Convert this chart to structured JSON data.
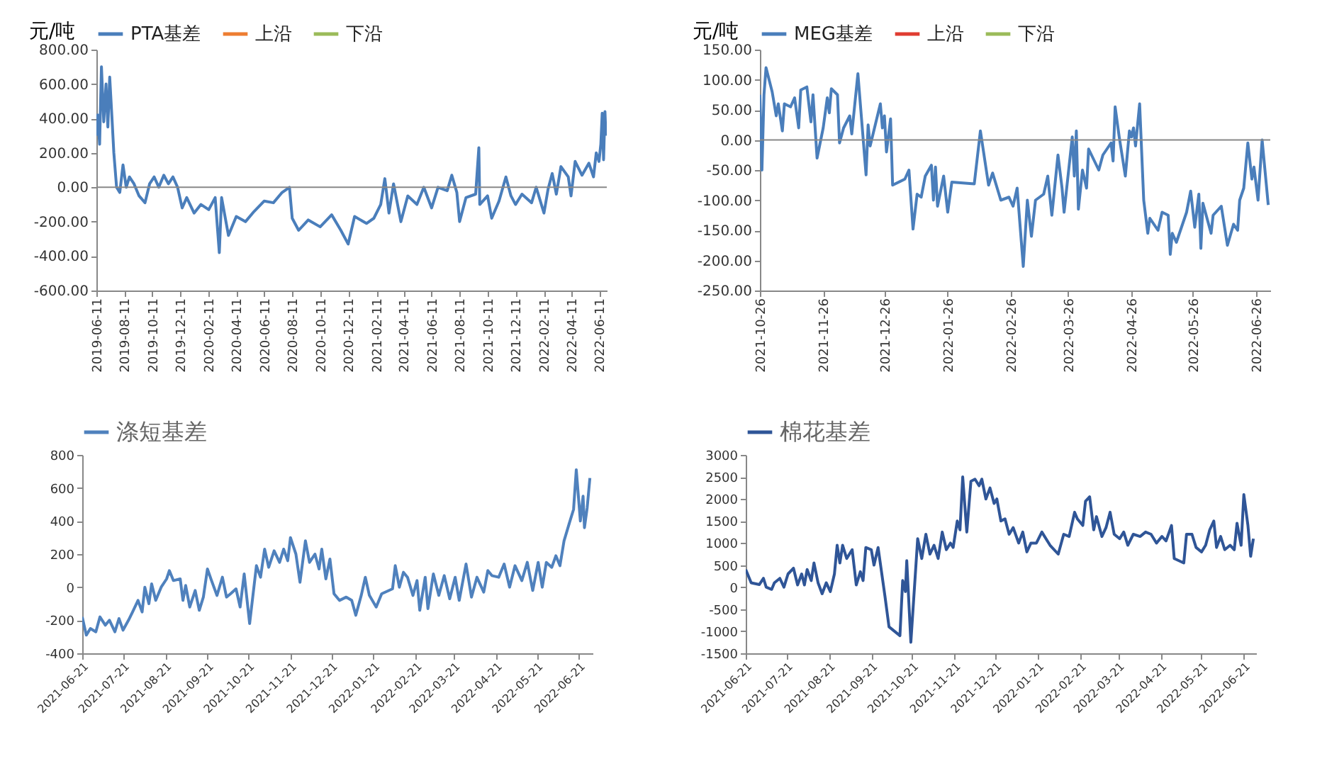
{
  "chart_data": [
    {
      "type": "line",
      "ylabel": "元/吨",
      "legend": "top",
      "xlim": [
        "2019-06-11",
        "2022-06-28"
      ],
      "ylim": [
        -600,
        800
      ],
      "yticks": [
        {
          "value": -600,
          "label": "-600.00"
        },
        {
          "value": -400,
          "label": "-400.00"
        },
        {
          "value": -200,
          "label": "-200.00"
        },
        {
          "value": 0,
          "label": "0.00"
        },
        {
          "value": 200,
          "label": "200.00"
        },
        {
          "value": 400,
          "label": "400.00"
        },
        {
          "value": 600,
          "label": "600.00"
        },
        {
          "value": 800,
          "label": "800.00"
        }
      ],
      "xticks": [
        "2019-06-11",
        "2019-08-11",
        "2019-10-11",
        "2019-12-11",
        "2020-02-11",
        "2020-04-11",
        "2020-06-11",
        "2020-08-11",
        "2020-10-11",
        "2020-12-11",
        "2021-02-11",
        "2021-04-11",
        "2021-06-11",
        "2021-08-11",
        "2021-10-11",
        "2021-12-11",
        "2022-02-11",
        "2022-04-11",
        "2022-06-11"
      ],
      "x": [
        "2019-06-11",
        "2019-06-14",
        "2019-06-18",
        "2019-06-22",
        "2019-06-27",
        "2019-07-02",
        "2019-07-06",
        "2019-07-10",
        "2019-07-15",
        "2019-07-19",
        "2019-07-25",
        "2019-08-01",
        "2019-08-08",
        "2019-08-15",
        "2019-08-22",
        "2019-09-01",
        "2019-09-12",
        "2019-09-25",
        "2019-10-05",
        "2019-10-15",
        "2019-10-25",
        "2019-11-05",
        "2019-11-15",
        "2019-11-25",
        "2019-12-05",
        "2019-12-15",
        "2019-12-25",
        "2020-01-10",
        "2020-01-25",
        "2020-02-11",
        "2020-02-25",
        "2020-03-05",
        "2020-03-10",
        "2020-03-25",
        "2020-04-11",
        "2020-05-01",
        "2020-05-20",
        "2020-06-11",
        "2020-07-01",
        "2020-07-20",
        "2020-08-05",
        "2020-08-11",
        "2020-08-25",
        "2020-09-15",
        "2020-10-11",
        "2020-11-05",
        "2020-11-25",
        "2020-12-11",
        "2020-12-25",
        "2021-01-20",
        "2021-02-05",
        "2021-02-20",
        "2021-03-01",
        "2021-03-10",
        "2021-03-20",
        "2021-04-05",
        "2021-04-20",
        "2021-05-10",
        "2021-05-25",
        "2021-06-11",
        "2021-06-25",
        "2021-07-15",
        "2021-07-25",
        "2021-08-05",
        "2021-08-11",
        "2021-08-25",
        "2021-09-15",
        "2021-09-22",
        "2021-09-24",
        "2021-10-11",
        "2021-10-20",
        "2021-11-05",
        "2021-11-20",
        "2021-12-01",
        "2021-12-11",
        "2021-12-25",
        "2022-01-15",
        "2022-01-25",
        "2022-02-11",
        "2022-02-20",
        "2022-03-01",
        "2022-03-10",
        "2022-03-20",
        "2022-04-05",
        "2022-04-11",
        "2022-04-20",
        "2022-05-05",
        "2022-05-20",
        "2022-05-30",
        "2022-06-05",
        "2022-06-11",
        "2022-06-15",
        "2022-06-18",
        "2022-06-21",
        "2022-06-24",
        "2022-06-26"
      ],
      "series": [
        {
          "name": "PTA基差",
          "color": "#4a7ebb",
          "values": [
            300,
            420,
            250,
            700,
            380,
            600,
            350,
            640,
            400,
            200,
            0,
            -30,
            130,
            0,
            60,
            20,
            -50,
            -90,
            20,
            60,
            0,
            70,
            20,
            60,
            0,
            -120,
            -60,
            -150,
            -100,
            -130,
            -60,
            -380,
            -60,
            -280,
            -170,
            -200,
            -140,
            -80,
            -90,
            -30,
            0,
            -180,
            -250,
            -190,
            -230,
            -160,
            -250,
            -330,
            -170,
            -210,
            -180,
            -100,
            50,
            -150,
            20,
            -200,
            -50,
            -100,
            0,
            -120,
            0,
            -20,
            70,
            -30,
            -200,
            -60,
            -40,
            230,
            -100,
            -50,
            -180,
            -80,
            60,
            -50,
            -100,
            -40,
            -90,
            0,
            -150,
            -10,
            80,
            -40,
            120,
            60,
            -50,
            150,
            70,
            140,
            60,
            200,
            150,
            250,
            430,
            160,
            440,
            300
          ]
        },
        {
          "name": "上沿",
          "color": "#ed7d31",
          "values": [
            null,
            null,
            null,
            null,
            null,
            null,
            null,
            null,
            null,
            null,
            null,
            null,
            null,
            null,
            null,
            null,
            null,
            null,
            null,
            null,
            null,
            null,
            null,
            null,
            null,
            null,
            null,
            null,
            null,
            null,
            null,
            null,
            null,
            null,
            null,
            null,
            null,
            null,
            null,
            null,
            null,
            null,
            null,
            null,
            null,
            null,
            null,
            null,
            null,
            null,
            null,
            null,
            null,
            null,
            null,
            null,
            null,
            null,
            null,
            null,
            null,
            null,
            null,
            null,
            null,
            null,
            null,
            null,
            null,
            null,
            null,
            null,
            null,
            null,
            null,
            null,
            null,
            null,
            null,
            null,
            null,
            null,
            null,
            null,
            null,
            null,
            null,
            null,
            null,
            null,
            null,
            null,
            null,
            null,
            null,
            null
          ]
        },
        {
          "name": "下沿",
          "color": "#9bbb59",
          "values": [
            null,
            null,
            null,
            null,
            null,
            null,
            null,
            null,
            null,
            null,
            null,
            null,
            null,
            null,
            null,
            null,
            null,
            null,
            null,
            null,
            null,
            null,
            null,
            null,
            null,
            null,
            null,
            null,
            null,
            null,
            null,
            null,
            null,
            null,
            null,
            null,
            null,
            null,
            null,
            null,
            null,
            null,
            null,
            null,
            null,
            null,
            null,
            null,
            null,
            null,
            null,
            null,
            null,
            null,
            null,
            null,
            null,
            null,
            null,
            null,
            null,
            null,
            null,
            null,
            null,
            null,
            null,
            null,
            null,
            null,
            null,
            null,
            null,
            null,
            null,
            null,
            null,
            null,
            null,
            null,
            null,
            null,
            null,
            null,
            null,
            null,
            null,
            null,
            null,
            null,
            null,
            null,
            null,
            null,
            null,
            null
          ]
        }
      ],
      "ref_lines": [
        {
          "axis": "y",
          "value": 0,
          "color": "#888888"
        }
      ]
    },
    {
      "type": "line",
      "ylabel": "元/吨",
      "legend": "top",
      "xlim": [
        "2021-10-26",
        "2022-07-03"
      ],
      "ylim": [
        -250,
        150
      ],
      "yticks": [
        {
          "value": -250,
          "label": "-250.00"
        },
        {
          "value": -200,
          "label": "-200.00"
        },
        {
          "value": -150,
          "label": "-150.00"
        },
        {
          "value": -100,
          "label": "-100.00"
        },
        {
          "value": -50,
          "label": "-50.00"
        },
        {
          "value": 0,
          "label": "0.00"
        },
        {
          "value": 50,
          "label": "50.00"
        },
        {
          "value": 100,
          "label": "100.00"
        },
        {
          "value": 150,
          "label": "150.00"
        }
      ],
      "xticks": [
        "2021-10-26",
        "2021-11-26",
        "2021-12-26",
        "2022-01-26",
        "2022-02-26",
        "2022-03-26",
        "2022-04-26",
        "2022-05-26",
        "2022-06-26"
      ],
      "x": [
        "2021-10-26",
        "2021-10-27",
        "2021-10-28",
        "2021-10-29",
        "2021-11-01",
        "2021-11-03",
        "2021-11-04",
        "2021-11-06",
        "2021-11-07",
        "2021-11-10",
        "2021-11-12",
        "2021-11-14",
        "2021-11-15",
        "2021-11-18",
        "2021-11-20",
        "2021-11-21",
        "2021-11-23",
        "2021-11-26",
        "2021-11-28",
        "2021-11-29",
        "2021-11-30",
        "2021-12-03",
        "2021-12-04",
        "2021-12-06",
        "2021-12-09",
        "2021-12-10",
        "2021-12-13",
        "2021-12-17",
        "2021-12-18",
        "2021-12-19",
        "2021-12-24",
        "2021-12-25",
        "2021-12-26",
        "2021-12-27",
        "2021-12-29",
        "2021-12-30",
        "2022-01-05",
        "2022-01-07",
        "2022-01-09",
        "2022-01-11",
        "2022-01-13",
        "2022-01-15",
        "2022-01-18",
        "2022-01-19",
        "2022-01-20",
        "2022-01-21",
        "2022-01-24",
        "2022-01-26",
        "2022-01-28",
        "2022-02-08",
        "2022-02-11",
        "2022-02-15",
        "2022-02-17",
        "2022-02-21",
        "2022-02-25",
        "2022-02-27",
        "2022-03-01",
        "2022-03-04",
        "2022-03-06",
        "2022-03-08",
        "2022-03-10",
        "2022-03-14",
        "2022-03-16",
        "2022-03-18",
        "2022-03-21",
        "2022-03-23",
        "2022-03-24",
        "2022-03-28",
        "2022-03-29",
        "2022-03-30",
        "2022-03-31",
        "2022-04-02",
        "2022-04-04",
        "2022-04-05",
        "2022-04-10",
        "2022-04-12",
        "2022-04-16",
        "2022-04-17",
        "2022-04-18",
        "2022-04-20",
        "2022-04-23",
        "2022-04-25",
        "2022-04-26",
        "2022-04-27",
        "2022-04-28",
        "2022-04-30",
        "2022-05-02",
        "2022-05-04",
        "2022-05-05",
        "2022-05-09",
        "2022-05-11",
        "2022-05-14",
        "2022-05-15",
        "2022-05-16",
        "2022-05-18",
        "2022-05-23",
        "2022-05-25",
        "2022-05-27",
        "2022-05-29",
        "2022-05-30",
        "2022-05-31",
        "2022-06-04",
        "2022-06-05",
        "2022-06-09",
        "2022-06-12",
        "2022-06-15",
        "2022-06-17",
        "2022-06-18",
        "2022-06-20",
        "2022-06-22",
        "2022-06-24",
        "2022-06-25",
        "2022-06-27",
        "2022-06-29",
        "2022-07-02"
      ],
      "series": [
        {
          "name": "MEG基差",
          "color": "#4a7ebb",
          "values": [
            75,
            -50,
            75,
            120,
            80,
            40,
            60,
            15,
            60,
            55,
            70,
            20,
            83,
            88,
            30,
            75,
            -30,
            20,
            70,
            45,
            85,
            75,
            -5,
            20,
            40,
            10,
            110,
            -58,
            25,
            -10,
            60,
            20,
            40,
            -20,
            35,
            -75,
            -65,
            -50,
            -148,
            -90,
            -95,
            -60,
            -42,
            -100,
            -45,
            -110,
            -60,
            -120,
            -70,
            -73,
            15,
            -75,
            -55,
            -100,
            -95,
            -110,
            -80,
            -210,
            -100,
            -160,
            -100,
            -90,
            -60,
            -125,
            -25,
            -80,
            -120,
            5,
            -60,
            15,
            -115,
            -50,
            -80,
            -15,
            -50,
            -25,
            -5,
            -35,
            55,
            5,
            -60,
            15,
            5,
            20,
            -10,
            60,
            -100,
            -155,
            -130,
            -150,
            -120,
            -125,
            -190,
            -155,
            -170,
            -120,
            -85,
            -145,
            -90,
            -180,
            -105,
            -155,
            -125,
            -110,
            -175,
            -140,
            -150,
            -100,
            -80,
            -5,
            -65,
            -45,
            -100,
            0,
            -108
          ]
        },
        {
          "name": "上沿",
          "color": "#e03c31",
          "values": [
            null,
            null,
            null,
            null,
            null,
            null,
            null,
            null,
            null,
            null,
            null,
            null,
            null,
            null,
            null,
            null,
            null,
            null,
            null,
            null,
            null,
            null,
            null,
            null,
            null,
            null,
            null,
            null,
            null,
            null,
            null,
            null,
            null,
            null,
            null,
            null,
            null,
            null,
            null,
            null,
            null,
            null,
            null,
            null,
            null,
            null,
            null,
            null,
            null,
            null,
            null,
            null,
            null,
            null,
            null,
            null,
            null,
            null,
            null,
            null,
            null,
            null,
            null,
            null,
            null,
            null,
            null,
            null,
            null,
            null,
            null,
            null,
            null,
            null,
            null,
            null,
            null,
            null,
            null,
            null,
            null,
            null,
            null,
            null,
            null,
            null,
            null,
            null,
            null,
            null,
            null,
            null,
            null,
            null,
            null,
            null,
            null,
            null,
            null,
            null,
            null,
            null,
            null,
            null,
            null,
            null,
            null,
            null,
            null,
            null,
            null,
            null,
            null,
            null,
            null
          ]
        },
        {
          "name": "下沿",
          "color": "#9bbb59",
          "values": [
            null,
            null,
            null,
            null,
            null,
            null,
            null,
            null,
            null,
            null,
            null,
            null,
            null,
            null,
            null,
            null,
            null,
            null,
            null,
            null,
            null,
            null,
            null,
            null,
            null,
            null,
            null,
            null,
            null,
            null,
            null,
            null,
            null,
            null,
            null,
            null,
            null,
            null,
            null,
            null,
            null,
            null,
            null,
            null,
            null,
            null,
            null,
            null,
            null,
            null,
            null,
            null,
            null,
            null,
            null,
            null,
            null,
            null,
            null,
            null,
            null,
            null,
            null,
            null,
            null,
            null,
            null,
            null,
            null,
            null,
            null,
            null,
            null,
            null,
            null,
            null,
            null,
            null,
            null,
            null,
            null,
            null,
            null,
            null,
            null,
            null,
            null,
            null,
            null,
            null,
            null,
            null,
            null,
            null,
            null,
            null,
            null,
            null,
            null,
            null,
            null,
            null,
            null,
            null,
            null,
            null,
            null,
            null,
            null,
            null,
            null,
            null,
            null,
            null,
            null
          ]
        }
      ],
      "ref_lines": [
        {
          "axis": "y",
          "value": 0,
          "color": "#888888"
        }
      ]
    },
    {
      "type": "line",
      "legend": "top",
      "xlim": [
        "2021-06-21",
        "2022-07-01"
      ],
      "ylim": [
        -400,
        800
      ],
      "yticks": [
        -400,
        -200,
        0,
        200,
        400,
        600,
        800
      ],
      "xticks": [
        "2021-06-21",
        "2021-07-21",
        "2021-08-21",
        "2021-09-21",
        "2021-10-21",
        "2021-11-21",
        "2021-12-21",
        "2022-01-21",
        "2022-02-21",
        "2022-03-21",
        "2022-04-21",
        "2022-05-21",
        "2022-06-21"
      ],
      "x": [
        "2021-06-21",
        "2021-06-24",
        "2021-06-27",
        "2021-07-01",
        "2021-07-04",
        "2021-07-08",
        "2021-07-11",
        "2021-07-15",
        "2021-07-18",
        "2021-07-21",
        "2021-07-25",
        "2021-07-28",
        "2021-08-01",
        "2021-08-04",
        "2021-08-06",
        "2021-08-09",
        "2021-08-11",
        "2021-08-14",
        "2021-08-18",
        "2021-08-22",
        "2021-08-24",
        "2021-08-27",
        "2021-09-01",
        "2021-09-03",
        "2021-09-05",
        "2021-09-08",
        "2021-09-12",
        "2021-09-15",
        "2021-09-18",
        "2021-09-21",
        "2021-09-24",
        "2021-09-28",
        "2021-10-02",
        "2021-10-05",
        "2021-10-08",
        "2021-10-12",
        "2021-10-15",
        "2021-10-18",
        "2021-10-22",
        "2021-10-27",
        "2021-10-30",
        "2021-11-02",
        "2021-11-05",
        "2021-11-09",
        "2021-11-13",
        "2021-11-16",
        "2021-11-19",
        "2021-11-21",
        "2021-11-25",
        "2021-11-28",
        "2021-12-02",
        "2021-12-05",
        "2021-12-09",
        "2021-12-12",
        "2021-12-14",
        "2021-12-17",
        "2021-12-20",
        "2021-12-23",
        "2021-12-27",
        "2022-01-01",
        "2022-01-05",
        "2022-01-08",
        "2022-01-12",
        "2022-01-15",
        "2022-01-18",
        "2022-01-23",
        "2022-01-27",
        "2022-02-04",
        "2022-02-06",
        "2022-02-09",
        "2022-02-12",
        "2022-02-15",
        "2022-02-19",
        "2022-02-22",
        "2022-02-24",
        "2022-02-28",
        "2022-03-02",
        "2022-03-06",
        "2022-03-10",
        "2022-03-14",
        "2022-03-18",
        "2022-03-22",
        "2022-03-25",
        "2022-03-30",
        "2022-04-03",
        "2022-04-07",
        "2022-04-12",
        "2022-04-15",
        "2022-04-18",
        "2022-04-23",
        "2022-04-27",
        "2022-05-01",
        "2022-05-05",
        "2022-05-10",
        "2022-05-14",
        "2022-05-18",
        "2022-05-22",
        "2022-05-25",
        "2022-05-28",
        "2022-06-01",
        "2022-06-04",
        "2022-06-07",
        "2022-06-10",
        "2022-06-14",
        "2022-06-17",
        "2022-06-19",
        "2022-06-22",
        "2022-06-24",
        "2022-06-25",
        "2022-06-27",
        "2022-06-29"
      ],
      "series": [
        {
          "name": "涤短基差",
          "color": "#4f81bd",
          "values": [
            -180,
            -290,
            -250,
            -270,
            -180,
            -230,
            -200,
            -270,
            -190,
            -260,
            -200,
            -150,
            -80,
            -150,
            0,
            -100,
            20,
            -80,
            0,
            50,
            100,
            40,
            50,
            -80,
            10,
            -120,
            -20,
            -140,
            -60,
            110,
            40,
            -50,
            60,
            -60,
            -40,
            -10,
            -120,
            80,
            -220,
            130,
            60,
            230,
            120,
            220,
            150,
            230,
            160,
            300,
            200,
            30,
            280,
            150,
            200,
            110,
            230,
            50,
            170,
            -40,
            -80,
            -60,
            -80,
            -170,
            -50,
            60,
            -50,
            -120,
            -40,
            -10,
            130,
            0,
            90,
            60,
            -50,
            40,
            -140,
            60,
            -130,
            80,
            -50,
            70,
            -70,
            60,
            -80,
            140,
            -60,
            60,
            -30,
            100,
            70,
            60,
            140,
            0,
            130,
            40,
            150,
            -20,
            150,
            0,
            150,
            120,
            190,
            130,
            280,
            390,
            470,
            710,
            400,
            550,
            360,
            480,
            660
          ]
        }
      ]
    },
    {
      "type": "line",
      "legend": "top",
      "xlim": [
        "2021-06-21",
        "2022-06-30"
      ],
      "ylim": [
        -1500,
        3000
      ],
      "yticks": [
        -1500,
        -1000,
        -500,
        0,
        500,
        1000,
        1500,
        2000,
        2500,
        3000
      ],
      "xticks": [
        "2021-06-21",
        "2021-07-21",
        "2021-08-21",
        "2021-09-21",
        "2021-10-21",
        "2021-11-21",
        "2021-12-21",
        "2022-01-21",
        "2022-02-21",
        "2022-03-21",
        "2022-04-21",
        "2022-05-21",
        "2022-06-21"
      ],
      "x": [
        "2021-06-21",
        "2021-06-25",
        "2021-07-01",
        "2021-07-04",
        "2021-07-06",
        "2021-07-10",
        "2021-07-12",
        "2021-07-16",
        "2021-07-19",
        "2021-07-22",
        "2021-07-26",
        "2021-07-29",
        "2021-08-01",
        "2021-08-03",
        "2021-08-05",
        "2021-08-08",
        "2021-08-10",
        "2021-08-13",
        "2021-08-16",
        "2021-08-19",
        "2021-08-22",
        "2021-08-25",
        "2021-08-27",
        "2021-08-29",
        "2021-08-31",
        "2021-09-03",
        "2021-09-07",
        "2021-09-10",
        "2021-09-13",
        "2021-09-15",
        "2021-09-17",
        "2021-09-21",
        "2021-09-23",
        "2021-09-26",
        "2021-10-01",
        "2021-10-04",
        "2021-10-12",
        "2021-10-14",
        "2021-10-16",
        "2021-10-17",
        "2021-10-20",
        "2021-10-25",
        "2021-10-28",
        "2021-10-31",
        "2021-11-03",
        "2021-11-06",
        "2021-11-09",
        "2021-11-12",
        "2021-11-15",
        "2021-11-18",
        "2021-11-20",
        "2021-11-23",
        "2021-11-25",
        "2021-11-27",
        "2021-11-30",
        "2021-12-03",
        "2021-12-06",
        "2021-12-09",
        "2021-12-11",
        "2021-12-14",
        "2021-12-17",
        "2021-12-20",
        "2021-12-22",
        "2021-12-25",
        "2021-12-28",
        "2021-12-31",
        "2022-01-03",
        "2022-01-07",
        "2022-01-10",
        "2022-01-13",
        "2022-01-16",
        "2022-01-20",
        "2022-01-24",
        "2022-01-30",
        "2022-02-05",
        "2022-02-09",
        "2022-02-13",
        "2022-02-17",
        "2022-02-19",
        "2022-02-23",
        "2022-02-25",
        "2022-02-28",
        "2022-03-03",
        "2022-03-05",
        "2022-03-09",
        "2022-03-12",
        "2022-03-15",
        "2022-03-18",
        "2022-03-22",
        "2022-03-25",
        "2022-03-28",
        "2022-04-01",
        "2022-04-06",
        "2022-04-10",
        "2022-04-14",
        "2022-04-18",
        "2022-04-22",
        "2022-04-25",
        "2022-04-29",
        "2022-05-01",
        "2022-05-08",
        "2022-05-10",
        "2022-05-14",
        "2022-05-17",
        "2022-05-21",
        "2022-05-24",
        "2022-05-27",
        "2022-05-30",
        "2022-06-01",
        "2022-06-04",
        "2022-06-07",
        "2022-06-11",
        "2022-06-14",
        "2022-06-16",
        "2022-06-19",
        "2022-06-21",
        "2022-06-24",
        "2022-06-26",
        "2022-06-28"
      ],
      "series": [
        {
          "name": "棉花基差",
          "color": "#2f5597",
          "values": [
            400,
            100,
            60,
            200,
            0,
            -50,
            100,
            200,
            0,
            300,
            430,
            50,
            300,
            50,
            400,
            150,
            550,
            100,
            -150,
            100,
            -100,
            300,
            950,
            550,
            950,
            650,
            850,
            50,
            350,
            150,
            900,
            850,
            500,
            900,
            -200,
            -900,
            -1100,
            150,
            -100,
            600,
            -1250,
            1100,
            650,
            1200,
            750,
            950,
            650,
            1250,
            850,
            1000,
            900,
            1500,
            1300,
            2500,
            1250,
            2400,
            2450,
            2300,
            2450,
            2000,
            2250,
            1900,
            2000,
            1500,
            1550,
            1200,
            1350,
            1000,
            1250,
            800,
            1000,
            1000,
            1250,
            950,
            750,
            1200,
            1150,
            1700,
            1550,
            1400,
            1950,
            2050,
            1300,
            1600,
            1150,
            1350,
            1700,
            1200,
            1100,
            1250,
            950,
            1200,
            1150,
            1250,
            1200,
            1000,
            1150,
            1050,
            1400,
            650,
            550,
            1200,
            1200,
            900,
            800,
            950,
            1300,
            1500,
            900,
            1150,
            850,
            950,
            850,
            1450,
            950,
            2100,
            1400,
            700,
            1100
          ]
        }
      ]
    }
  ]
}
